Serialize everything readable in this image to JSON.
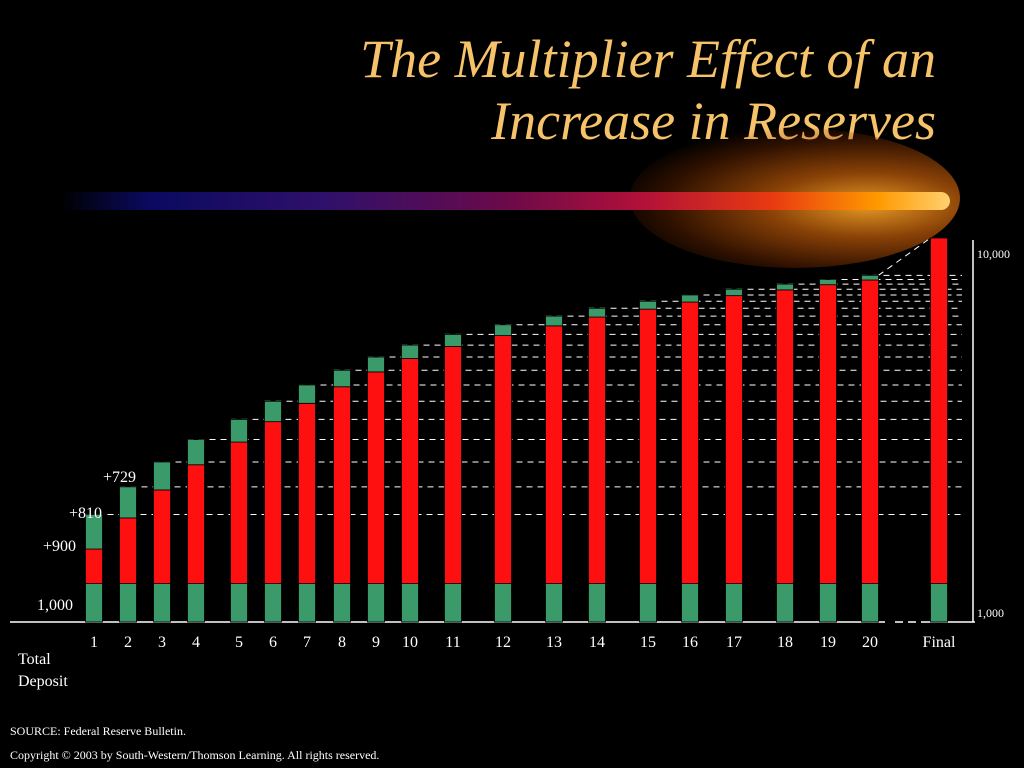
{
  "title_lines": [
    "The Multiplier Effect of an",
    "Increase in Reserves"
  ],
  "chart_data": {
    "type": "bar",
    "stacked": true,
    "categories": [
      "1",
      "2",
      "3",
      "4",
      "5",
      "6",
      "7",
      "8",
      "9",
      "10",
      "11",
      "12",
      "13",
      "14",
      "15",
      "16",
      "17",
      "18",
      "19",
      "20",
      "Final"
    ],
    "series": [
      {
        "values": [
          1000,
          1000,
          1000,
          1000,
          1000,
          1000,
          1000,
          1000,
          1000,
          1000,
          1000,
          1000,
          1000,
          1000,
          1000,
          1000,
          1000,
          1000,
          1000,
          1000,
          1000
        ],
        "color": "#3a9a6a"
      },
      {
        "values": [
          900,
          1710,
          2439,
          3095,
          3686,
          4217,
          4695,
          5126,
          5513,
          5862,
          6176,
          6458,
          6712,
          6941,
          7147,
          7332,
          7499,
          7649,
          7784,
          7906,
          9000
        ],
        "color": "#ff1010"
      },
      {
        "values": [
          900,
          810,
          729,
          656,
          590,
          531,
          478,
          430,
          387,
          349,
          314,
          282,
          254,
          229,
          206,
          185,
          167,
          150,
          135,
          122,
          0
        ],
        "color": "#3a9a6a"
      }
    ],
    "bar_labels": [
      "+900",
      "+810",
      "+729"
    ],
    "left_annotation": "1,000",
    "axis_labels": {
      "right_top": "10,000",
      "right_bottom": "1,000"
    },
    "xlabel": [
      "Total",
      "Deposit"
    ]
  },
  "footer": {
    "source": "SOURCE: Federal Reserve Bulletin.",
    "copyright": "Copyright © 2003 by South-Western/Thomson Learning. All rights reserved."
  },
  "colors": {
    "title": "#f7c36a",
    "red": "#ff1010",
    "green": "#3a9a6a",
    "background": "#000000"
  }
}
